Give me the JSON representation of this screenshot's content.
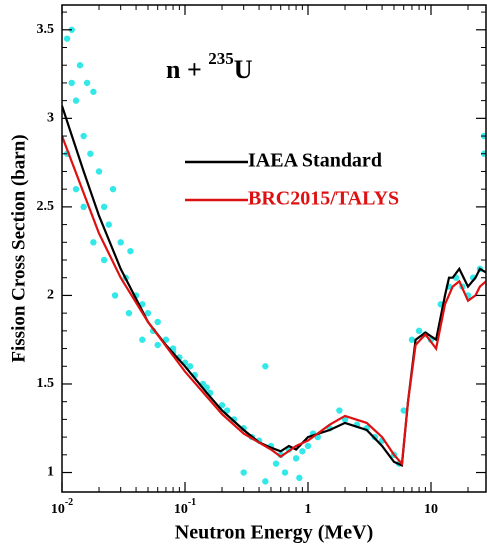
{
  "chart_data": {
    "type": "line",
    "annotation": {
      "text": "n + ",
      "sup": "235",
      "tail": "U"
    },
    "xlabel": "Neutron Energy (MeV)",
    "ylabel": "Fission Cross Section  (barn)",
    "log_x": true,
    "xlim": [
      0.01,
      28
    ],
    "ylim": [
      0.89,
      3.64
    ],
    "xticks": [
      {
        "value": 0.01,
        "label": "10",
        "sup": "-2"
      },
      {
        "value": 0.1,
        "label": "10",
        "sup": "-1"
      },
      1,
      10
    ],
    "xminorticks": [
      0.02,
      0.03,
      0.04,
      0.05,
      0.06,
      0.07,
      0.08,
      0.09,
      0.2,
      0.3,
      0.4,
      0.5,
      0.6,
      0.7,
      0.8,
      0.9,
      2,
      3,
      4,
      5,
      6,
      7,
      8,
      9,
      20
    ],
    "yticks": [
      1,
      1.5,
      2,
      2.5,
      3,
      3.5
    ],
    "yminorticks": [
      1.1,
      1.2,
      1.3,
      1.4,
      1.6,
      1.7,
      1.8,
      1.9,
      2.1,
      2.2,
      2.3,
      2.4,
      2.6,
      2.7,
      2.8,
      2.9,
      3.1,
      3.2,
      3.3,
      3.4,
      3.6
    ],
    "scatter": {
      "color": "#33e8e8",
      "x": [
        0.011,
        0.012,
        0.012,
        0.013,
        0.014,
        0.015,
        0.016,
        0.017,
        0.018,
        0.02,
        0.022,
        0.024,
        0.026,
        0.03,
        0.033,
        0.036,
        0.04,
        0.045,
        0.05,
        0.055,
        0.06,
        0.07,
        0.08,
        0.09,
        0.1,
        0.12,
        0.14,
        0.16,
        0.2,
        0.25,
        0.3,
        0.35,
        0.4,
        0.45,
        0.5,
        0.6,
        0.7,
        0.8,
        0.9,
        1,
        1.2,
        1.5,
        2,
        2.5,
        3,
        4,
        5,
        5.5,
        6,
        7,
        8,
        9,
        10,
        12,
        14,
        16,
        18,
        20,
        22,
        25,
        27,
        0.011,
        0.013,
        0.015,
        0.018,
        0.022,
        0.027,
        0.035,
        0.045,
        0.06,
        0.08,
        0.11,
        0.15,
        0.22,
        0.3,
        0.45,
        0.55,
        0.65,
        0.85,
        1.1,
        1.8,
        3.5,
        27
      ],
      "y": [
        3.45,
        3.5,
        3.2,
        3.1,
        3.3,
        2.9,
        3.2,
        2.8,
        3.15,
        2.7,
        2.5,
        2.4,
        2.6,
        2.3,
        2.1,
        2.25,
        2.0,
        1.95,
        1.9,
        1.8,
        1.85,
        1.75,
        1.7,
        1.65,
        1.62,
        1.55,
        1.5,
        1.45,
        1.38,
        1.3,
        1.25,
        1.2,
        1.18,
        1.6,
        1.15,
        1.1,
        1.13,
        1.08,
        1.12,
        1.15,
        1.2,
        1.25,
        1.3,
        1.27,
        1.25,
        1.18,
        1.1,
        1.05,
        1.35,
        1.75,
        1.8,
        1.78,
        1.75,
        1.95,
        2.05,
        2.1,
        2.05,
        2.0,
        2.1,
        2.15,
        2.9,
        2.8,
        2.6,
        2.5,
        2.3,
        2.2,
        2.0,
        1.9,
        1.75,
        1.72,
        1.68,
        1.6,
        1.48,
        1.35,
        1.0,
        0.95,
        1.05,
        1.0,
        0.97,
        1.22,
        1.35,
        1.2,
        2.8
      ]
    },
    "series": [
      {
        "name": "IAEA Standard",
        "color": "#000000",
        "x": [
          0.01,
          0.015,
          0.02,
          0.03,
          0.05,
          0.07,
          0.1,
          0.15,
          0.2,
          0.3,
          0.4,
          0.5,
          0.6,
          0.7,
          0.8,
          1.0,
          1.5,
          2,
          3,
          4,
          5,
          5.8,
          6.5,
          7.5,
          9,
          11,
          13,
          14,
          15,
          17,
          20,
          23,
          25,
          28
        ],
        "values": [
          3.07,
          2.7,
          2.45,
          2.15,
          1.85,
          1.72,
          1.6,
          1.45,
          1.35,
          1.24,
          1.17,
          1.14,
          1.12,
          1.15,
          1.13,
          1.2,
          1.24,
          1.28,
          1.24,
          1.15,
          1.06,
          1.04,
          1.4,
          1.75,
          1.79,
          1.75,
          2.0,
          2.1,
          2.1,
          2.15,
          2.05,
          2.1,
          2.15,
          2.13
        ]
      },
      {
        "name": "BRC2015/TALYS",
        "color": "#dd1111",
        "x": [
          0.01,
          0.02,
          0.03,
          0.05,
          0.1,
          0.2,
          0.3,
          0.5,
          0.6,
          0.8,
          1,
          1.5,
          2,
          3,
          4,
          5,
          5.8,
          6.5,
          7.5,
          9,
          11,
          13,
          15,
          17,
          20,
          23,
          25,
          28
        ],
        "values": [
          2.9,
          2.35,
          2.1,
          1.85,
          1.57,
          1.33,
          1.22,
          1.13,
          1.09,
          1.15,
          1.18,
          1.27,
          1.32,
          1.28,
          1.2,
          1.1,
          1.05,
          1.4,
          1.72,
          1.78,
          1.7,
          1.95,
          2.05,
          2.08,
          1.97,
          2.0,
          2.05,
          2.08
        ]
      }
    ]
  }
}
